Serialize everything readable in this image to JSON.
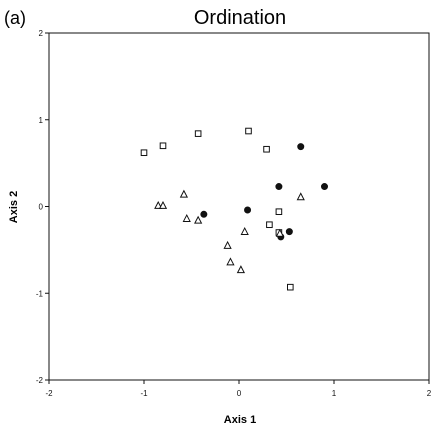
{
  "panel_label": "(a)",
  "chart_data": {
    "type": "scatter",
    "title": "Ordination",
    "xlabel": "Axis 1",
    "ylabel": "Axis 2",
    "xlim": [
      -2,
      2
    ],
    "ylim": [
      -2,
      2
    ],
    "xticks": [
      "-2",
      "-1",
      "0",
      "1",
      "2"
    ],
    "yticks": [
      "-2",
      "-1",
      "0",
      "1",
      "2"
    ],
    "grid": false,
    "legend": false,
    "colors": {
      "axis": "#111111",
      "marker_stroke": "#111111",
      "filled_marker": "#111111",
      "open_marker_fill": "#ffffff"
    },
    "series": [
      {
        "marker": "square-open",
        "points": [
          {
            "x": -1.0,
            "y": 0.62
          },
          {
            "x": -0.8,
            "y": 0.7
          },
          {
            "x": -0.43,
            "y": 0.84
          },
          {
            "x": 0.1,
            "y": 0.87
          },
          {
            "x": 0.29,
            "y": 0.66
          },
          {
            "x": 0.32,
            "y": -0.21
          },
          {
            "x": 0.42,
            "y": -0.06
          },
          {
            "x": 0.42,
            "y": -0.3
          },
          {
            "x": 0.54,
            "y": -0.93
          }
        ]
      },
      {
        "marker": "circle-filled",
        "points": [
          {
            "x": -0.37,
            "y": -0.09
          },
          {
            "x": 0.09,
            "y": -0.04
          },
          {
            "x": 0.42,
            "y": 0.23
          },
          {
            "x": 0.44,
            "y": -0.35
          },
          {
            "x": 0.53,
            "y": -0.29
          },
          {
            "x": 0.65,
            "y": 0.69
          },
          {
            "x": 0.9,
            "y": 0.23
          }
        ]
      },
      {
        "marker": "triangle-open",
        "points": [
          {
            "x": -0.85,
            "y": 0.01
          },
          {
            "x": -0.8,
            "y": 0.01
          },
          {
            "x": -0.58,
            "y": 0.14
          },
          {
            "x": -0.55,
            "y": -0.14
          },
          {
            "x": -0.43,
            "y": -0.16
          },
          {
            "x": -0.12,
            "y": -0.45
          },
          {
            "x": -0.09,
            "y": -0.64
          },
          {
            "x": 0.02,
            "y": -0.73
          },
          {
            "x": 0.06,
            "y": -0.29
          },
          {
            "x": 0.43,
            "y": -0.31
          },
          {
            "x": 0.65,
            "y": 0.11
          }
        ]
      }
    ]
  }
}
